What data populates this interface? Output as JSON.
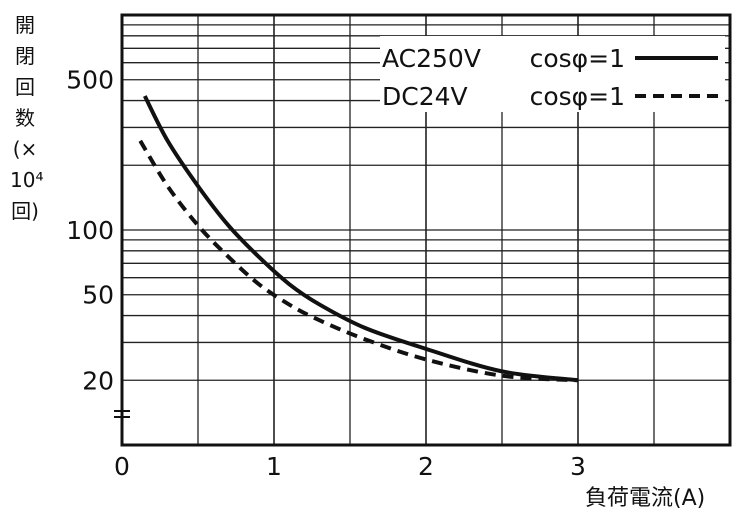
{
  "chart_data": {
    "type": "line",
    "xlabel": "負荷電流(A)",
    "ylabel_chars": [
      "開",
      "閉",
      "回",
      "数",
      "(×",
      "10⁴",
      "回)"
    ],
    "x_ticks": [
      "0",
      "1",
      "2",
      "3"
    ],
    "y_ticks": [
      {
        "value": 500,
        "label": "500"
      },
      {
        "value": 100,
        "label": "100"
      },
      {
        "value": 50,
        "label": "50"
      },
      {
        "value": 20,
        "label": "20"
      }
    ],
    "xlim": [
      0,
      4
    ],
    "y_scale": "log",
    "ylim": [
      10,
      1000
    ],
    "grid": true,
    "legend_position": "top-right",
    "series": [
      {
        "name": "AC250V",
        "condition": "cosφ=1",
        "style": "solid",
        "x": [
          0.15,
          0.3,
          0.5,
          0.7,
          0.9,
          1.1,
          1.3,
          1.6,
          2.0,
          2.5,
          3.0
        ],
        "y": [
          420,
          260,
          160,
          105,
          75,
          56,
          45,
          35,
          28,
          22,
          20
        ]
      },
      {
        "name": "DC24V",
        "condition": "cosφ=1",
        "style": "dashed",
        "x": [
          0.12,
          0.3,
          0.5,
          0.7,
          0.9,
          1.1,
          1.3,
          1.6,
          2.0,
          2.5,
          3.0
        ],
        "y": [
          260,
          160,
          105,
          75,
          56,
          45,
          38,
          31,
          25,
          21,
          20
        ]
      }
    ]
  }
}
